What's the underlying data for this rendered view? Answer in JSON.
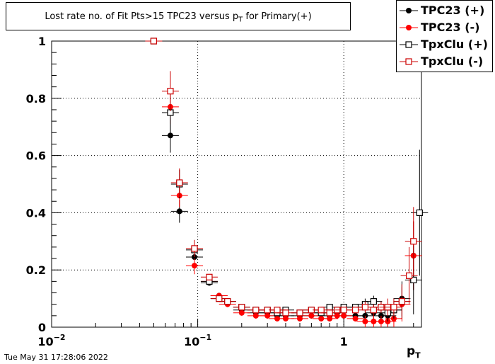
{
  "timestamp": "Tue May 31 17:28:06 2022",
  "chart_data": {
    "type": "scatter",
    "title": "Lost rate no. of Fit Pts>15 TPC23 versus p",
    "title_subscript": "T",
    "title_suffix": " for Primary(+)",
    "xlabel": "p",
    "xlabel_subscript": "T",
    "ylabel": "",
    "x_scale": "log",
    "xlim": [
      0.01,
      3.4
    ],
    "ylim": [
      0,
      1.0
    ],
    "grid": true,
    "legend_position": "top-right",
    "x_ticks": [
      {
        "value": 0.01,
        "base": "10",
        "exp": "−2"
      },
      {
        "value": 0.1,
        "base": "10",
        "exp": "−1"
      },
      {
        "value": 1,
        "base": "1",
        "exp": ""
      }
    ],
    "y_ticks": [
      {
        "value": 0,
        "label": "0"
      },
      {
        "value": 0.2,
        "label": "0.2"
      },
      {
        "value": 0.4,
        "label": "0.4"
      },
      {
        "value": 0.6,
        "label": "0.6"
      },
      {
        "value": 0.8,
        "label": "0.8"
      },
      {
        "value": 1.0,
        "label": "1"
      }
    ],
    "series": [
      {
        "name": "TPC23 (+)",
        "color": "#000000",
        "marker": "filled-circle",
        "points": [
          [
            0.05,
            1.0
          ],
          [
            0.065,
            0.67
          ],
          [
            0.075,
            0.405
          ],
          [
            0.095,
            0.245
          ],
          [
            0.12,
            0.155
          ],
          [
            0.14,
            0.11
          ],
          [
            0.16,
            0.09
          ],
          [
            0.2,
            0.06
          ],
          [
            0.25,
            0.05
          ],
          [
            0.3,
            0.05
          ],
          [
            0.35,
            0.04
          ],
          [
            0.4,
            0.04
          ],
          [
            0.5,
            0.04
          ],
          [
            0.6,
            0.04
          ],
          [
            0.7,
            0.05
          ],
          [
            0.8,
            0.04
          ],
          [
            0.9,
            0.05
          ],
          [
            1.0,
            0.04
          ],
          [
            1.2,
            0.04
          ],
          [
            1.4,
            0.04
          ],
          [
            1.6,
            0.05
          ],
          [
            1.8,
            0.04
          ],
          [
            2.0,
            0.04
          ],
          [
            2.2,
            0.06
          ],
          [
            2.5,
            0.1
          ],
          [
            3.0,
            0.25
          ]
        ],
        "errors": [
          0,
          0.06,
          0.04,
          0.03,
          0.01,
          0.01,
          0.01,
          0.01,
          0.01,
          0.01,
          0.01,
          0.01,
          0.01,
          0.01,
          0.01,
          0.01,
          0.01,
          0.01,
          0.01,
          0.02,
          0.02,
          0.02,
          0.03,
          0.03,
          0.06,
          0.12
        ]
      },
      {
        "name": "TPC23 (-)",
        "color": "#ff0000",
        "marker": "filled-circle",
        "points": [
          [
            0.05,
            1.0
          ],
          [
            0.065,
            0.77
          ],
          [
            0.075,
            0.46
          ],
          [
            0.095,
            0.215
          ],
          [
            0.12,
            0.16
          ],
          [
            0.14,
            0.11
          ],
          [
            0.16,
            0.08
          ],
          [
            0.2,
            0.05
          ],
          [
            0.25,
            0.04
          ],
          [
            0.3,
            0.04
          ],
          [
            0.35,
            0.03
          ],
          [
            0.4,
            0.03
          ],
          [
            0.5,
            0.03
          ],
          [
            0.6,
            0.04
          ],
          [
            0.7,
            0.03
          ],
          [
            0.8,
            0.03
          ],
          [
            0.9,
            0.04
          ],
          [
            1.0,
            0.04
          ],
          [
            1.2,
            0.03
          ],
          [
            1.4,
            0.02
          ],
          [
            1.6,
            0.02
          ],
          [
            1.8,
            0.02
          ],
          [
            2.0,
            0.02
          ],
          [
            2.2,
            0.03
          ],
          [
            2.5,
            0.08
          ],
          [
            3.0,
            0.25
          ]
        ],
        "errors": [
          0,
          0.06,
          0.04,
          0.03,
          0.01,
          0.01,
          0.01,
          0.01,
          0.01,
          0.01,
          0.01,
          0.01,
          0.01,
          0.01,
          0.01,
          0.01,
          0.01,
          0.01,
          0.01,
          0.02,
          0.02,
          0.02,
          0.03,
          0.03,
          0.06,
          0.12
        ]
      },
      {
        "name": "TpxClu (+)",
        "color": "#000000",
        "marker": "open-square",
        "points": [
          [
            0.05,
            1.0
          ],
          [
            0.065,
            0.75
          ],
          [
            0.075,
            0.5
          ],
          [
            0.095,
            0.27
          ],
          [
            0.12,
            0.16
          ],
          [
            0.14,
            0.1
          ],
          [
            0.16,
            0.09
          ],
          [
            0.2,
            0.07
          ],
          [
            0.25,
            0.06
          ],
          [
            0.3,
            0.06
          ],
          [
            0.35,
            0.05
          ],
          [
            0.4,
            0.06
          ],
          [
            0.5,
            0.05
          ],
          [
            0.6,
            0.06
          ],
          [
            0.7,
            0.05
          ],
          [
            0.8,
            0.07
          ],
          [
            0.9,
            0.06
          ],
          [
            1.0,
            0.07
          ],
          [
            1.2,
            0.07
          ],
          [
            1.4,
            0.08
          ],
          [
            1.6,
            0.09
          ],
          [
            1.8,
            0.07
          ],
          [
            2.0,
            0.05
          ],
          [
            2.2,
            0.06
          ],
          [
            2.5,
            0.09
          ],
          [
            3.0,
            0.165
          ],
          [
            3.3,
            0.4
          ]
        ],
        "errors": [
          0,
          0.07,
          0.05,
          0.03,
          0.01,
          0.01,
          0.01,
          0.01,
          0.01,
          0.01,
          0.01,
          0.01,
          0.01,
          0.01,
          0.01,
          0.01,
          0.01,
          0.01,
          0.01,
          0.02,
          0.02,
          0.02,
          0.03,
          0.03,
          0.06,
          0.12,
          0.22
        ]
      },
      {
        "name": "TpxClu (-)",
        "color": "#cc0000",
        "marker": "open-square",
        "points": [
          [
            0.05,
            1.0
          ],
          [
            0.065,
            0.825
          ],
          [
            0.075,
            0.505
          ],
          [
            0.095,
            0.275
          ],
          [
            0.12,
            0.175
          ],
          [
            0.14,
            0.1
          ],
          [
            0.16,
            0.09
          ],
          [
            0.2,
            0.07
          ],
          [
            0.25,
            0.06
          ],
          [
            0.3,
            0.06
          ],
          [
            0.35,
            0.06
          ],
          [
            0.4,
            0.05
          ],
          [
            0.5,
            0.05
          ],
          [
            0.6,
            0.06
          ],
          [
            0.7,
            0.06
          ],
          [
            0.8,
            0.05
          ],
          [
            0.9,
            0.06
          ],
          [
            1.0,
            0.06
          ],
          [
            1.2,
            0.06
          ],
          [
            1.4,
            0.07
          ],
          [
            1.6,
            0.06
          ],
          [
            1.8,
            0.07
          ],
          [
            2.0,
            0.07
          ],
          [
            2.2,
            0.07
          ],
          [
            2.5,
            0.09
          ],
          [
            2.8,
            0.18
          ],
          [
            3.0,
            0.3
          ]
        ],
        "errors": [
          0,
          0.07,
          0.05,
          0.03,
          0.01,
          0.01,
          0.01,
          0.01,
          0.01,
          0.01,
          0.01,
          0.01,
          0.01,
          0.01,
          0.01,
          0.01,
          0.01,
          0.01,
          0.01,
          0.02,
          0.02,
          0.02,
          0.03,
          0.03,
          0.06,
          0.1,
          0.12
        ]
      }
    ]
  }
}
